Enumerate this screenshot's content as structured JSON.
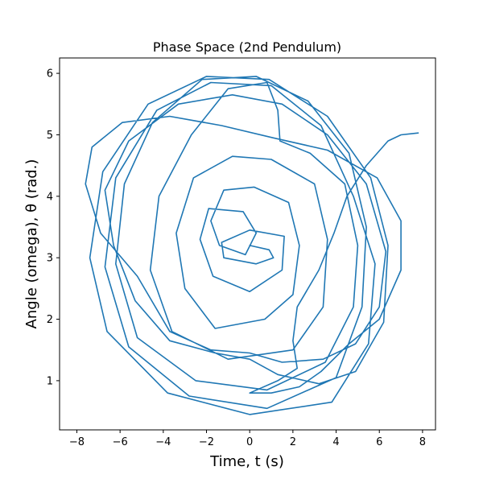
{
  "chart_data": {
    "type": "line",
    "title": "Phase Space (2nd Pendulum)",
    "xlabel": "Time, t (s)",
    "ylabel": "Angle (omega),  θ (rad.)",
    "xlim": [
      -8.8,
      8.6
    ],
    "ylim": [
      0.2,
      6.25
    ],
    "xticks": [
      -8,
      -6,
      -4,
      -2,
      0,
      2,
      4,
      6,
      8
    ],
    "yticks": [
      1,
      2,
      3,
      4,
      5,
      6
    ],
    "grid": false,
    "legend": "none",
    "colors": {
      "series": "#1f77b4"
    },
    "series": [
      {
        "points": [
          [
            0.0,
            3.2
          ],
          [
            0.9,
            3.13
          ],
          [
            1.1,
            3.0
          ],
          [
            0.3,
            2.9
          ],
          [
            -1.2,
            3.0
          ],
          [
            -1.3,
            3.25
          ],
          [
            0.0,
            3.45
          ],
          [
            1.6,
            3.35
          ],
          [
            1.5,
            2.8
          ],
          [
            0.0,
            2.45
          ],
          [
            -1.7,
            2.7
          ],
          [
            -2.3,
            3.3
          ],
          [
            -1.9,
            3.8
          ],
          [
            -0.3,
            3.75
          ],
          [
            0.3,
            3.4
          ],
          [
            -0.2,
            3.05
          ],
          [
            -1.4,
            3.2
          ],
          [
            -1.8,
            3.6
          ],
          [
            -1.2,
            4.1
          ],
          [
            0.2,
            4.15
          ],
          [
            1.8,
            3.9
          ],
          [
            2.3,
            3.2
          ],
          [
            2.0,
            2.4
          ],
          [
            0.7,
            2.0
          ],
          [
            -1.6,
            1.85
          ],
          [
            -3.0,
            2.5
          ],
          [
            -3.4,
            3.4
          ],
          [
            -2.6,
            4.3
          ],
          [
            -0.8,
            4.65
          ],
          [
            1.0,
            4.6
          ],
          [
            3.0,
            4.2
          ],
          [
            3.6,
            3.3
          ],
          [
            3.4,
            2.2
          ],
          [
            2.0,
            1.5
          ],
          [
            -1.0,
            1.35
          ],
          [
            -3.6,
            1.8
          ],
          [
            -4.6,
            2.8
          ],
          [
            -4.2,
            4.0
          ],
          [
            -2.7,
            5.0
          ],
          [
            -1.0,
            5.75
          ],
          [
            0.8,
            5.85
          ],
          [
            1.3,
            5.4
          ],
          [
            1.4,
            4.9
          ],
          [
            2.8,
            4.7
          ],
          [
            4.4,
            4.2
          ],
          [
            5.0,
            3.2
          ],
          [
            4.8,
            2.2
          ],
          [
            3.5,
            1.3
          ],
          [
            0.8,
            0.85
          ],
          [
            -2.5,
            1.0
          ],
          [
            -5.2,
            1.7
          ],
          [
            -6.2,
            2.9
          ],
          [
            -5.8,
            4.2
          ],
          [
            -4.5,
            5.2
          ],
          [
            -2.2,
            5.9
          ],
          [
            0.3,
            5.95
          ],
          [
            2.7,
            5.55
          ],
          [
            4.6,
            4.7
          ],
          [
            5.4,
            3.5
          ],
          [
            5.2,
            2.2
          ],
          [
            4.0,
            1.05
          ],
          [
            0.8,
            0.55
          ],
          [
            -2.8,
            0.75
          ],
          [
            -5.6,
            1.55
          ],
          [
            -6.7,
            2.85
          ],
          [
            -6.2,
            4.3
          ],
          [
            -4.3,
            5.4
          ],
          [
            -1.8,
            5.85
          ],
          [
            1.0,
            5.8
          ],
          [
            3.3,
            5.15
          ],
          [
            4.8,
            4.0
          ],
          [
            5.8,
            2.9
          ],
          [
            5.5,
            1.6
          ],
          [
            3.8,
            0.65
          ],
          [
            0.0,
            0.45
          ],
          [
            -3.8,
            0.8
          ],
          [
            -6.6,
            1.8
          ],
          [
            -7.4,
            3.0
          ],
          [
            -6.8,
            4.4
          ],
          [
            -4.7,
            5.5
          ],
          [
            -2.0,
            5.95
          ],
          [
            0.9,
            5.9
          ],
          [
            3.6,
            5.3
          ],
          [
            5.6,
            4.3
          ],
          [
            6.4,
            3.2
          ],
          [
            6.2,
            1.95
          ],
          [
            4.9,
            1.15
          ],
          [
            3.2,
            0.95
          ],
          [
            1.3,
            1.1
          ],
          [
            0.0,
            1.35
          ],
          [
            -1.6,
            1.45
          ],
          [
            -3.7,
            1.65
          ],
          [
            -5.3,
            2.3
          ],
          [
            -6.3,
            3.2
          ],
          [
            -6.7,
            4.1
          ],
          [
            -5.6,
            4.9
          ],
          [
            -3.3,
            5.5
          ],
          [
            -0.8,
            5.65
          ],
          [
            1.5,
            5.5
          ],
          [
            3.6,
            5.0
          ],
          [
            5.4,
            4.2
          ],
          [
            6.3,
            3.1
          ],
          [
            6.0,
            2.2
          ],
          [
            4.9,
            1.6
          ],
          [
            3.4,
            1.35
          ],
          [
            1.5,
            1.3
          ],
          [
            0.0,
            1.45
          ],
          [
            -1.8,
            1.5
          ],
          [
            -3.7,
            1.8
          ],
          [
            -5.2,
            2.7
          ],
          [
            -6.9,
            3.4
          ],
          [
            -7.6,
            4.2
          ],
          [
            -7.3,
            4.8
          ],
          [
            -5.9,
            5.2
          ],
          [
            -3.7,
            5.3
          ],
          [
            -1.3,
            5.15
          ],
          [
            1.1,
            4.95
          ],
          [
            3.6,
            4.75
          ],
          [
            5.9,
            4.3
          ],
          [
            7.0,
            3.6
          ],
          [
            7.0,
            2.8
          ],
          [
            6.0,
            2.0
          ],
          [
            4.6,
            1.6
          ],
          [
            3.3,
            1.15
          ],
          [
            2.3,
            0.9
          ],
          [
            1.0,
            0.8
          ],
          [
            0.0,
            0.8
          ],
          [
            1.3,
            1.0
          ],
          [
            2.2,
            1.2
          ],
          [
            2.0,
            1.65
          ],
          [
            2.2,
            2.2
          ],
          [
            3.2,
            2.8
          ],
          [
            3.9,
            3.4
          ],
          [
            4.5,
            4.0
          ],
          [
            5.4,
            4.5
          ],
          [
            6.4,
            4.9
          ],
          [
            7.0,
            5.0
          ],
          [
            7.8,
            5.03
          ]
        ]
      }
    ]
  }
}
